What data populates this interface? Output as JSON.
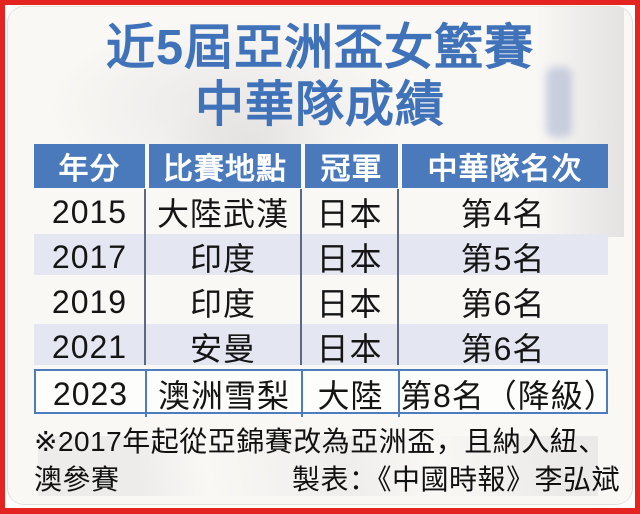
{
  "title": {
    "line1": "近5屆亞洲盃女籃賽",
    "line2": "中華隊成績",
    "color": "#3f72b8"
  },
  "table": {
    "headers": [
      "年分",
      "比賽地點",
      "冠軍",
      "中華隊名次"
    ],
    "rows": [
      {
        "year": "2015",
        "location": "大陸武漢",
        "champion": "日本",
        "taiwan_rank": "第4名"
      },
      {
        "year": "2017",
        "location": "印度",
        "champion": "日本",
        "taiwan_rank": "第5名"
      },
      {
        "year": "2019",
        "location": "印度",
        "champion": "日本",
        "taiwan_rank": "第6名"
      },
      {
        "year": "2021",
        "location": "安曼",
        "champion": "日本",
        "taiwan_rank": "第6名"
      },
      {
        "year": "2023",
        "location": "澳洲雪梨",
        "champion": "大陸",
        "taiwan_rank": "第8名（降級）"
      }
    ],
    "highlighted_year": "2023",
    "colors": {
      "header_bg": "#4a7abc",
      "stripe_bg": "#e4e7f2",
      "separator": "#5b6a80",
      "highlight_border": "#4d7dbe",
      "frame_red": "#e32421"
    }
  },
  "footnote": {
    "line1": "※2017年起從亞錦賽改為亞洲盃，且納入紐、",
    "line2_left": "澳參賽",
    "credit": "製表：《中國時報》李弘斌"
  },
  "chart_data": {
    "type": "table",
    "title": "近5屆亞洲盃女籃賽中華隊成績",
    "columns": [
      "年分",
      "比賽地點",
      "冠軍",
      "中華隊名次"
    ],
    "rows": [
      [
        "2015",
        "大陸武漢",
        "日本",
        "第4名"
      ],
      [
        "2017",
        "印度",
        "日本",
        "第5名"
      ],
      [
        "2019",
        "印度",
        "日本",
        "第6名"
      ],
      [
        "2021",
        "安曼",
        "日本",
        "第6名"
      ],
      [
        "2023",
        "澳洲雪梨",
        "大陸",
        "第8名（降級）"
      ]
    ],
    "highlighted_row": "2023",
    "footnote": "※2017年起從亞錦賽改為亞洲盃，且納入紐、澳參賽",
    "credit": "製表：《中國時報》李弘斌"
  }
}
